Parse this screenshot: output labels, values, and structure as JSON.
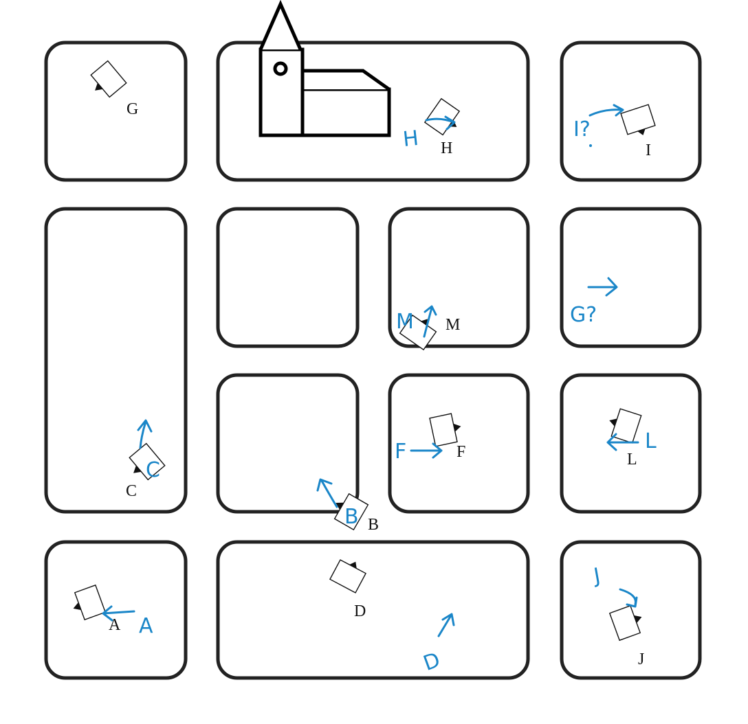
{
  "map": {
    "block_color": "#222222",
    "annotation_color": "#1a86c8",
    "landmark": "church-icon"
  },
  "stations": [
    {
      "id": "G",
      "label": "G",
      "heading_deg": -40
    },
    {
      "id": "H",
      "label": "H",
      "heading_deg": 35
    },
    {
      "id": "I",
      "label": "I",
      "heading_deg": -18
    },
    {
      "id": "M",
      "label": "M",
      "heading_deg": 35
    },
    {
      "id": "C",
      "label": "C",
      "heading_deg": -40
    },
    {
      "id": "F",
      "label": "F",
      "heading_deg": -12
    },
    {
      "id": "L",
      "label": "L",
      "heading_deg": 18
    },
    {
      "id": "B",
      "label": "B",
      "heading_deg": 30
    },
    {
      "id": "A",
      "label": "A",
      "heading_deg": -20
    },
    {
      "id": "D",
      "label": "D",
      "heading_deg": 28
    },
    {
      "id": "J",
      "label": "J",
      "heading_deg": -20
    }
  ],
  "annotations": [
    {
      "id": "H",
      "text": "H"
    },
    {
      "id": "I",
      "text": "I?"
    },
    {
      "id": "M",
      "text": "M"
    },
    {
      "id": "G",
      "text": "G?"
    },
    {
      "id": "C",
      "text": "C"
    },
    {
      "id": "F",
      "text": "F"
    },
    {
      "id": "L",
      "text": "L"
    },
    {
      "id": "B",
      "text": "B"
    },
    {
      "id": "A",
      "text": "A"
    },
    {
      "id": "D",
      "text": "D"
    },
    {
      "id": "J",
      "text": "J"
    }
  ]
}
